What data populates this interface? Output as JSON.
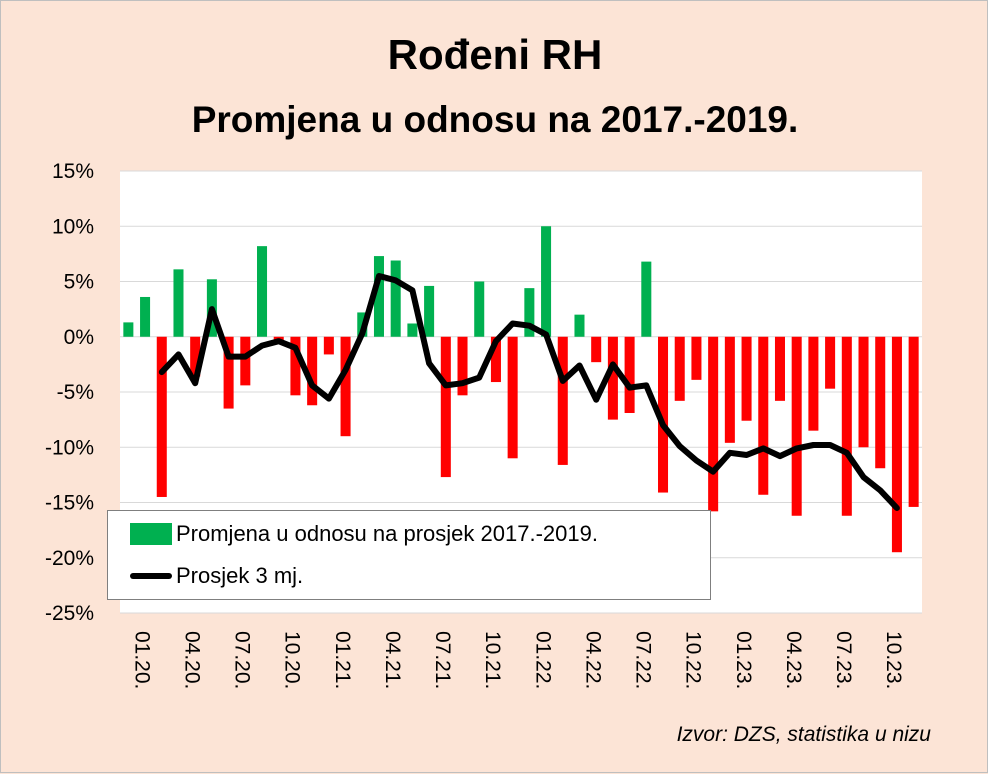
{
  "chart_data": {
    "type": "bar",
    "title": "Rođeni RH",
    "subtitle": "Promjena u odnosu na 2017.-2019.",
    "ylim": [
      -25,
      15
    ],
    "yticks": [
      15,
      10,
      5,
      0,
      -5,
      -10,
      -15,
      -20,
      -25
    ],
    "ytick_labels": [
      "15%",
      "10%",
      "5%",
      "0%",
      "-5%",
      "-10%",
      "-15%",
      "-20%",
      "-25%"
    ],
    "x_tick_labels": [
      {
        "index": 0,
        "label": "01.20."
      },
      {
        "index": 3,
        "label": "04.20."
      },
      {
        "index": 6,
        "label": "07.20."
      },
      {
        "index": 9,
        "label": "10.20."
      },
      {
        "index": 12,
        "label": "01.21."
      },
      {
        "index": 15,
        "label": "04.21."
      },
      {
        "index": 18,
        "label": "07.21."
      },
      {
        "index": 21,
        "label": "10.21."
      },
      {
        "index": 24,
        "label": "01.22."
      },
      {
        "index": 27,
        "label": "04.22."
      },
      {
        "index": 30,
        "label": "07.22."
      },
      {
        "index": 33,
        "label": "10.22."
      },
      {
        "index": 36,
        "label": "01.23."
      },
      {
        "index": 39,
        "label": "04.23."
      },
      {
        "index": 42,
        "label": "07.23."
      },
      {
        "index": 45,
        "label": "10.23."
      }
    ],
    "series": [
      {
        "name": "Promjena u odnosu na prosjek 2017.-2019.",
        "kind": "bar",
        "positive_color": "#00b050",
        "negative_color": "#ff0000",
        "values": [
          1.3,
          3.6,
          -14.5,
          6.1,
          -3.6,
          5.2,
          -6.5,
          -4.4,
          8.2,
          -0.5,
          -5.3,
          -6.2,
          -1.6,
          -9.0,
          2.2,
          7.3,
          6.9,
          1.2,
          4.6,
          -12.7,
          -5.3,
          5.0,
          -4.1,
          -11.0,
          4.4,
          10.0,
          -11.6,
          2.0,
          -2.3,
          -7.5,
          -6.9,
          6.8,
          -14.1,
          -5.8,
          -3.9,
          -15.8,
          -9.6,
          -7.6,
          -14.3,
          -5.8,
          -16.2,
          -8.5,
          -4.7,
          -16.2,
          -10.0,
          -11.9,
          -19.5,
          -15.4
        ]
      },
      {
        "name": "Prosjek 3 mj.",
        "kind": "line",
        "color": "#000000",
        "start_index": 2,
        "values": [
          -3.2,
          -1.6,
          -4.2,
          2.5,
          -1.8,
          -1.8,
          -0.8,
          -0.4,
          -1.0,
          -4.4,
          -5.6,
          -3.0,
          0.3,
          5.5,
          5.1,
          4.2,
          -2.4,
          -4.4,
          -4.2,
          -3.7,
          -0.4,
          1.2,
          1.0,
          0.2,
          -4.0,
          -2.6,
          -5.7,
          -2.5,
          -4.6,
          -4.4,
          -8.0,
          -9.9,
          -11.2,
          -12.2,
          -10.5,
          -10.7,
          -10.1,
          -10.8,
          -10.1,
          -9.8,
          -9.8,
          -10.5,
          -12.7,
          -13.9,
          -15.5
        ]
      }
    ],
    "legend": [
      {
        "label": "Promjena u odnosu na prosjek 2017.-2019.",
        "kind": "bar",
        "color": "#00b050"
      },
      {
        "label": "Prosjek 3 mj.",
        "kind": "line",
        "color": "#000000"
      }
    ],
    "legend_placement": "lower-left",
    "grid": true,
    "source": "Izvor: DZS, statistika u nizu"
  }
}
